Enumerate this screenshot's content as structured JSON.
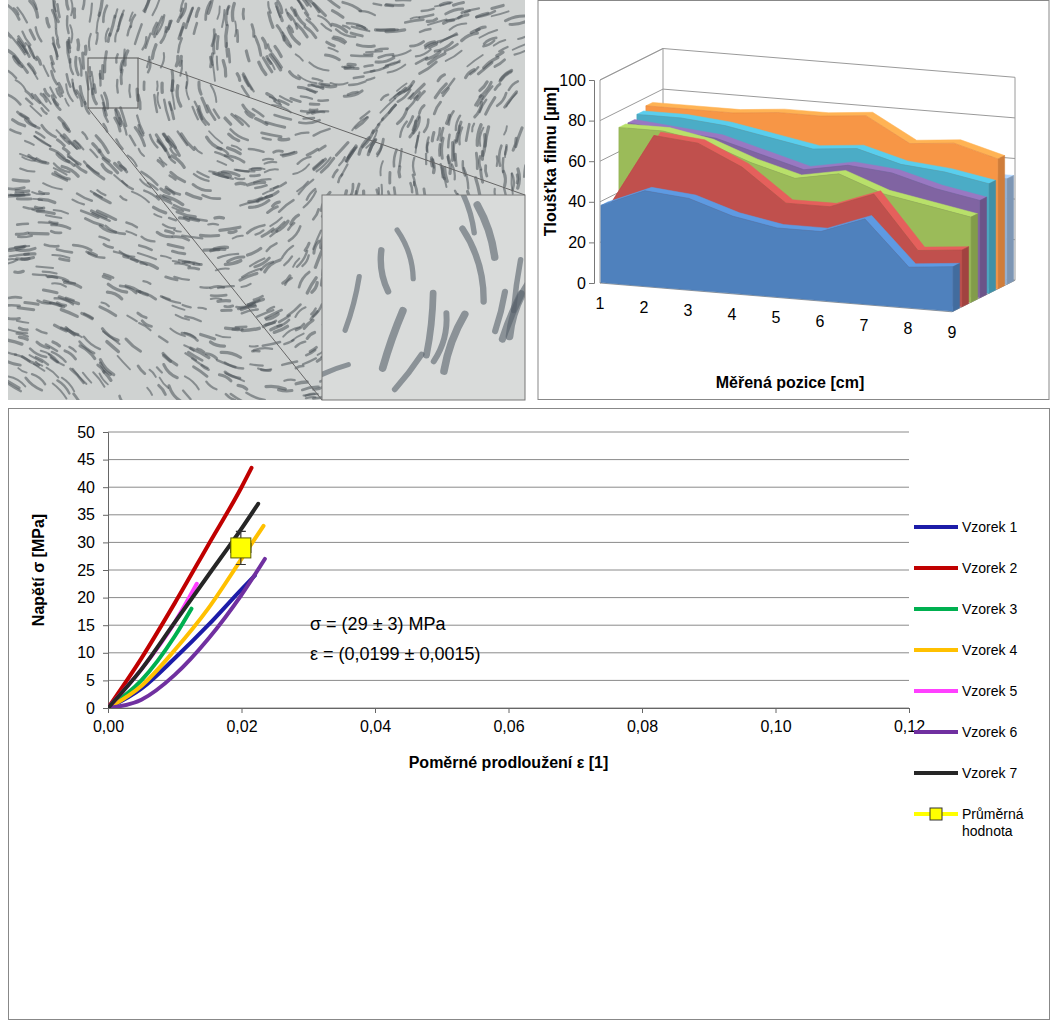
{
  "chart_data": [
    {
      "type": "area3d",
      "y_label": "Tloušťka filmu [µm]",
      "x_label": "Měřená pozice [cm]",
      "categories": [
        "1",
        "2",
        "3",
        "4",
        "5",
        "6",
        "7",
        "8",
        "9"
      ],
      "ylim": [
        0,
        100
      ],
      "yticks": [
        0,
        20,
        40,
        60,
        80,
        100
      ],
      "grid": true,
      "series": [
        {
          "color": "#4f81bd",
          "values": [
            38,
            47,
            45,
            38,
            34,
            34,
            42,
            20,
            22
          ]
        },
        {
          "color": "#c0504d",
          "values": [
            36,
            72,
            70,
            60,
            44,
            44,
            52,
            26,
            28
          ]
        },
        {
          "color": "#9bbb59",
          "values": [
            72,
            72,
            68,
            60,
            54,
            58,
            50,
            46,
            42
          ]
        },
        {
          "color": "#8064a2",
          "values": [
            72,
            70,
            68,
            62,
            56,
            60,
            58,
            52,
            48
          ]
        },
        {
          "color": "#4bacc6",
          "values": [
            74,
            74,
            72,
            68,
            64,
            66,
            60,
            58,
            54
          ]
        },
        {
          "color": "#f79646",
          "values": [
            76,
            76,
            76,
            78,
            78,
            80,
            68,
            70,
            64
          ]
        },
        {
          "color": "#95b3d7",
          "values": [
            58,
            58,
            60,
            58,
            56,
            56,
            54,
            52,
            52
          ]
        }
      ]
    },
    {
      "type": "line",
      "y_label": "Napětí σ [MPa]",
      "x_label": "Poměrné prodloužení ε [1]",
      "xlim": [
        0,
        0.12
      ],
      "xticks": [
        {
          "value": 0,
          "label": "0,00"
        },
        {
          "value": 0.02,
          "label": "0,02"
        },
        {
          "value": 0.04,
          "label": "0,04"
        },
        {
          "value": 0.06,
          "label": "0,06"
        },
        {
          "value": 0.08,
          "label": "0,08"
        },
        {
          "value": 0.1,
          "label": "0,10"
        },
        {
          "value": 0.12,
          "label": "0,12"
        }
      ],
      "ylim": [
        0,
        50
      ],
      "yticks": [
        0,
        5,
        10,
        15,
        20,
        25,
        30,
        35,
        40,
        45,
        50
      ],
      "grid": true,
      "legend": "right",
      "annotations": [
        "σ = (29 ± 3) MPa",
        "ε = (0,0199 ± 0,0015)"
      ],
      "series": [
        {
          "name": "Vzorek 1",
          "type": "line",
          "color": "#1c1ca8",
          "x": [
            0,
            0.005,
            0.01,
            0.015,
            0.02,
            0.022
          ],
          "values": [
            0,
            3.5,
            9,
            15,
            21.5,
            24
          ]
        },
        {
          "name": "Vzorek 2",
          "type": "line",
          "color": "#c00000",
          "x": [
            0,
            0.005,
            0.01,
            0.015,
            0.02,
            0.0215
          ],
          "values": [
            0,
            9,
            19,
            29.5,
            40,
            43.5
          ]
        },
        {
          "name": "Vzorek 3",
          "type": "line",
          "color": "#00b050",
          "x": [
            0,
            0.005,
            0.01,
            0.0125
          ],
          "values": [
            0,
            5,
            13,
            18
          ]
        },
        {
          "name": "Vzorek 4",
          "type": "line",
          "color": "#ffc000",
          "x": [
            0,
            0.005,
            0.01,
            0.015,
            0.02,
            0.0233
          ],
          "values": [
            0,
            4,
            10.5,
            18,
            27,
            33
          ]
        },
        {
          "name": "Vzorek 5",
          "type": "line",
          "color": "#ff40ff",
          "x": [
            0,
            0.005,
            0.01,
            0.0133
          ],
          "values": [
            0,
            7,
            15.5,
            22.5
          ]
        },
        {
          "name": "Vzorek 6",
          "type": "line",
          "color": "#7030a0",
          "x": [
            0,
            0.005,
            0.01,
            0.015,
            0.02,
            0.0235
          ],
          "values": [
            0,
            1.5,
            6,
            12.5,
            20.5,
            27
          ]
        },
        {
          "name": "Vzorek 7",
          "type": "line",
          "color": "#262626",
          "x": [
            0,
            0.005,
            0.01,
            0.015,
            0.02,
            0.0225
          ],
          "values": [
            0,
            7,
            15.5,
            24,
            32.5,
            37
          ]
        },
        {
          "name": "Průměrná hodnota",
          "type": "scatter",
          "marker": "square",
          "color": "#ffff00",
          "x": [
            0.0199
          ],
          "values": [
            29
          ],
          "x_error": [
            0.0015
          ],
          "y_error": [
            3
          ]
        }
      ]
    }
  ]
}
